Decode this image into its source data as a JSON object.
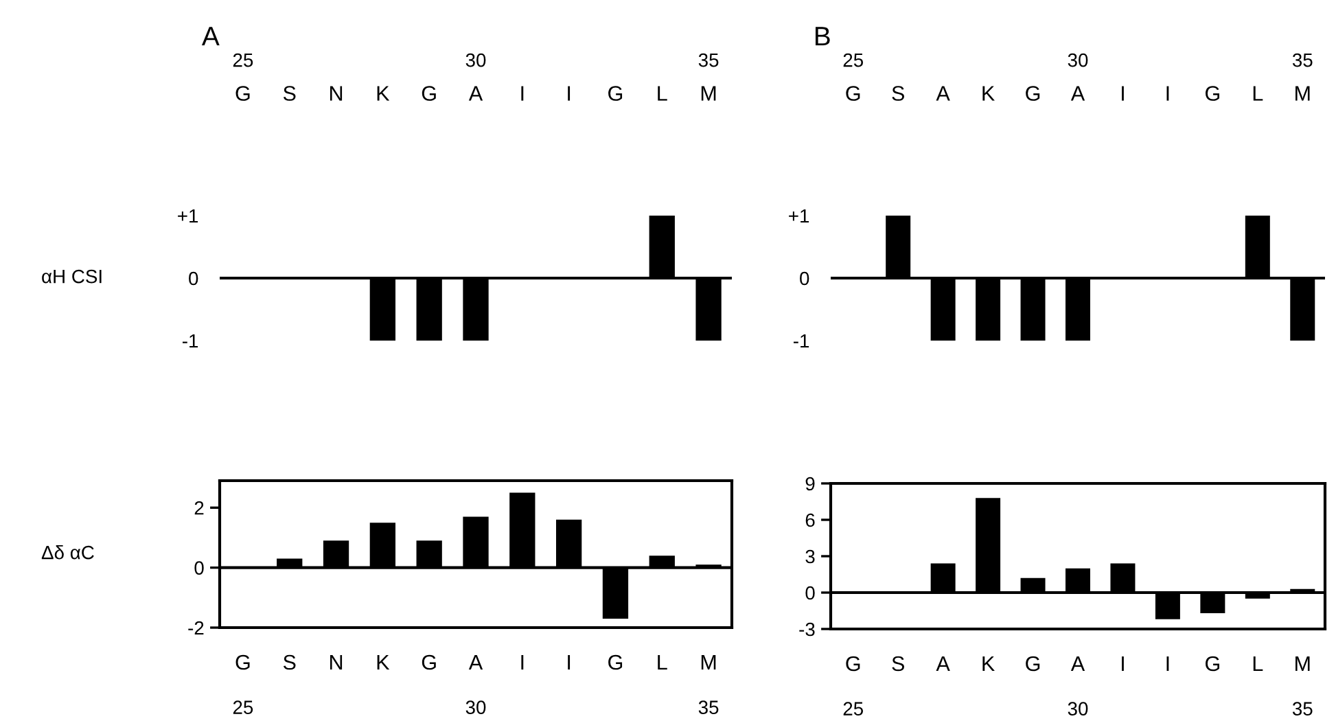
{
  "chart_data": [
    {
      "type": "bar",
      "title": "A",
      "ylabel": "αH CSI",
      "categories": [
        "G",
        "S",
        "N",
        "K",
        "G",
        "A",
        "I",
        "I",
        "G",
        "L",
        "M"
      ],
      "values": [
        0,
        0,
        0,
        -1,
        -1,
        -1,
        0,
        0,
        0,
        1,
        -1
      ],
      "color": "#000000",
      "ylim": [
        -1,
        1
      ],
      "yticks": [
        {
          "value": 1,
          "label": "+1"
        },
        0,
        -1
      ],
      "x2lim": [
        24.5,
        35.5
      ],
      "x2ticks": [
        25,
        30,
        35
      ]
    },
    {
      "type": "bar",
      "title": "B",
      "categories": [
        "G",
        "S",
        "A",
        "K",
        "G",
        "A",
        "I",
        "I",
        "G",
        "L",
        "M"
      ],
      "values": [
        0,
        1,
        -1,
        -1,
        -1,
        -1,
        0,
        0,
        0,
        1,
        -1
      ],
      "color": "#000000",
      "ylim": [
        -1,
        1
      ],
      "yticks": [
        {
          "value": 1,
          "label": "+1"
        },
        0,
        -1
      ],
      "x2lim": [
        24.5,
        35.5
      ],
      "x2ticks": [
        25,
        30,
        35
      ]
    },
    {
      "type": "bar",
      "ylabel": "Δδ αC",
      "categories": [
        "G",
        "S",
        "N",
        "K",
        "G",
        "A",
        "I",
        "I",
        "G",
        "L",
        "M"
      ],
      "values": [
        0,
        0.3,
        0.9,
        1.5,
        0.9,
        1.7,
        2.5,
        1.6,
        -1.7,
        0.4,
        0.1
      ],
      "color": "#000000",
      "ylim": [
        -2,
        2.9
      ],
      "yticks": [
        -2,
        0,
        2
      ],
      "x2lim": [
        24.5,
        35.5
      ],
      "x2ticks": [
        25,
        30,
        35
      ]
    },
    {
      "type": "bar",
      "categories": [
        "G",
        "S",
        "A",
        "K",
        "G",
        "A",
        "I",
        "I",
        "G",
        "L",
        "M"
      ],
      "values": [
        0,
        0,
        2.4,
        7.8,
        1.2,
        2.0,
        2.4,
        -2.2,
        -1.7,
        -0.5,
        0.3
      ],
      "color": "#000000",
      "ylim": [
        -3,
        9
      ],
      "yticks": [
        -3,
        0,
        3,
        6,
        9
      ],
      "x2lim": [
        24.5,
        35.5
      ],
      "x2ticks": [
        25,
        30,
        35
      ]
    }
  ]
}
